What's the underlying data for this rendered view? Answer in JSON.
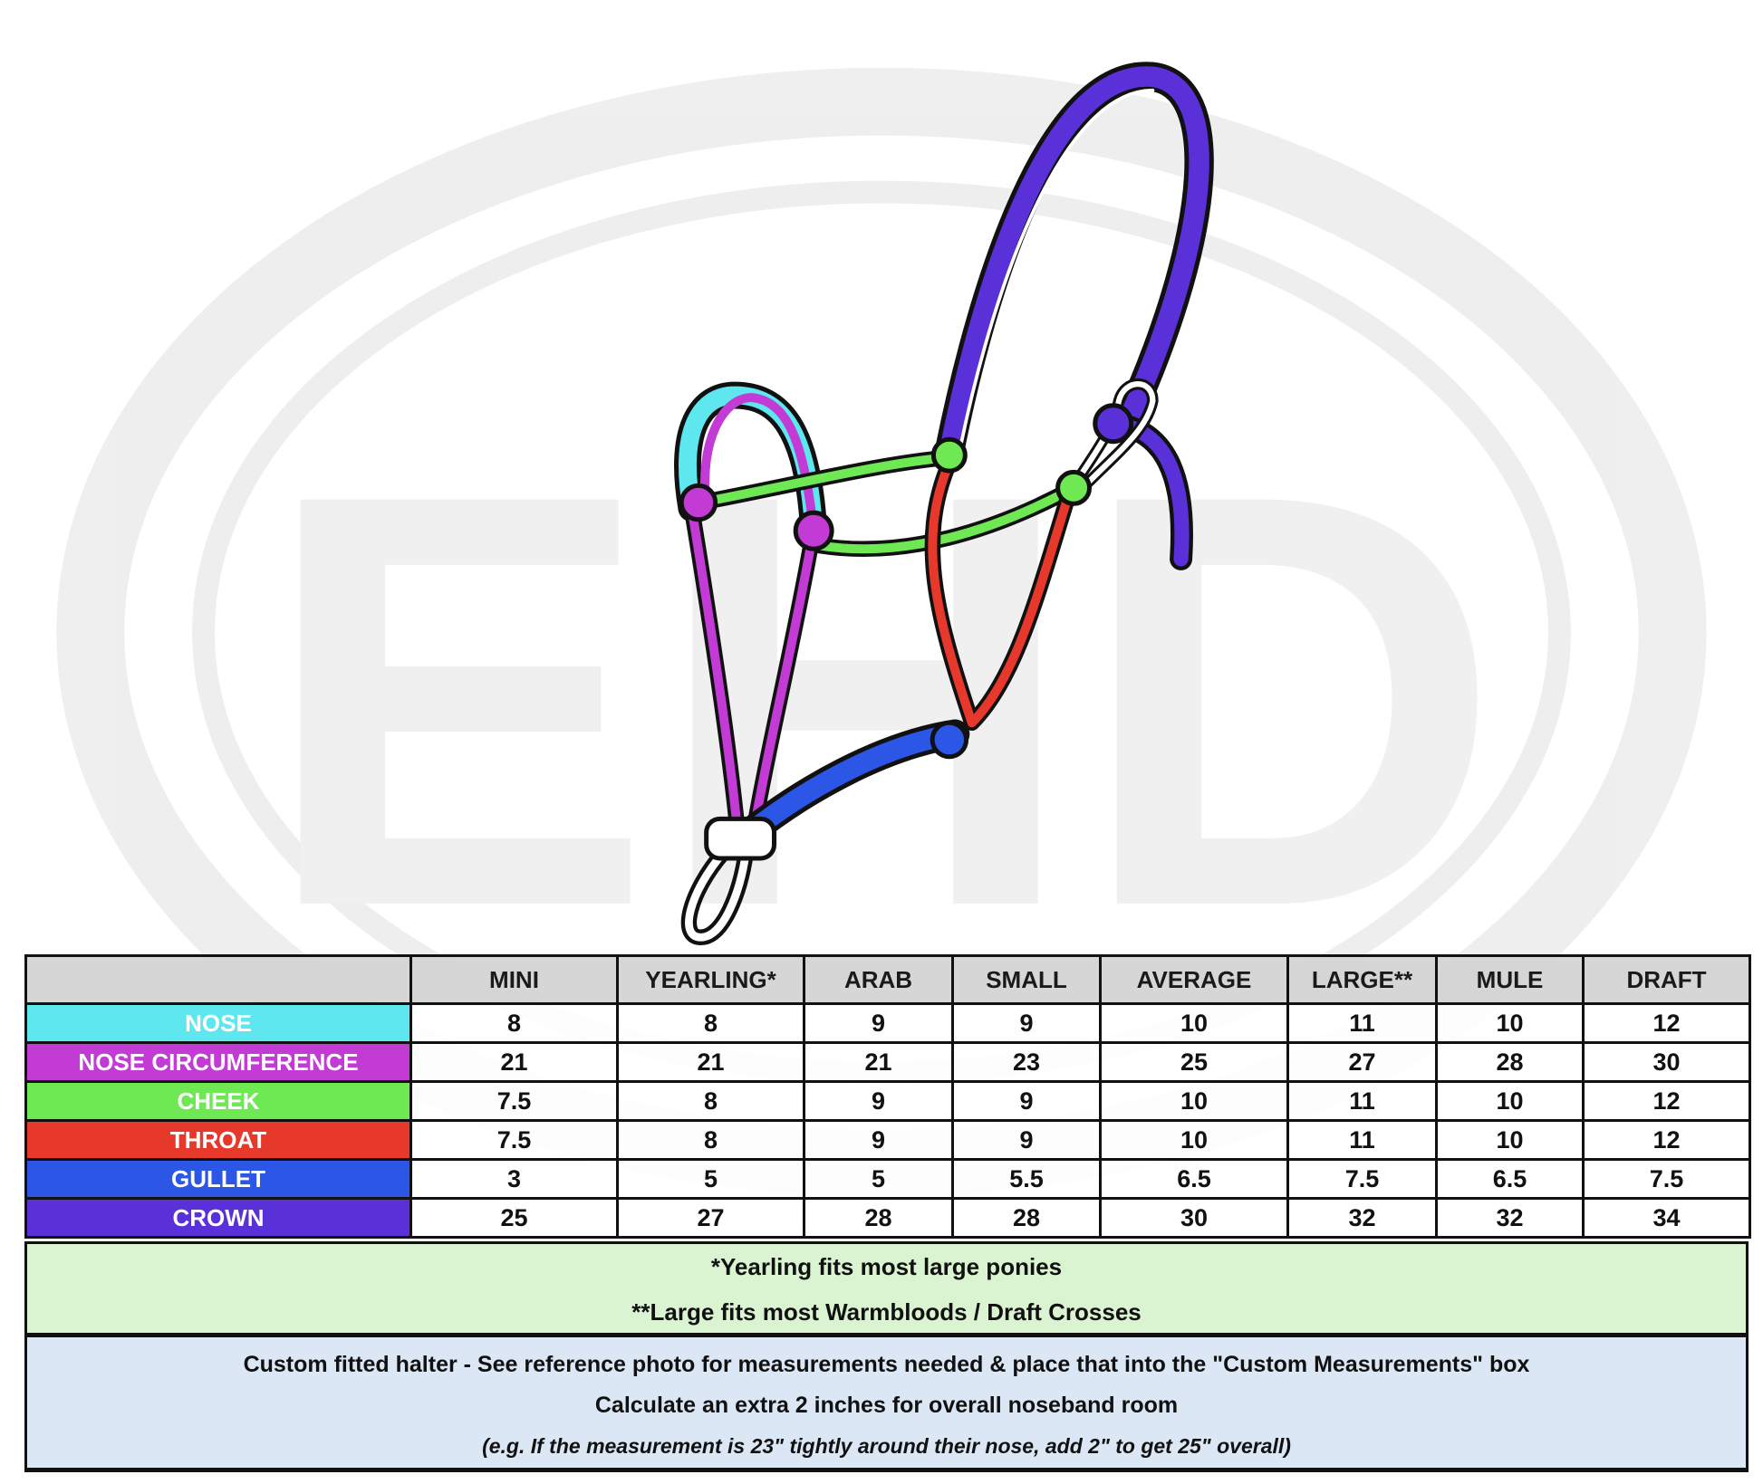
{
  "watermark": {
    "text": "EHD"
  },
  "colors": {
    "nose": "#5ee7ef",
    "nose_circumference": "#c23bd4",
    "cheek": "#6ee853",
    "throat": "#e6392b",
    "gullet": "#2c56e6",
    "crown": "#5a30d8",
    "header": "#d4d4d4",
    "footnote_bg": "#d7f2cd",
    "custom_bg": "#dae6f4"
  },
  "table": {
    "columns": [
      "MINI",
      "YEARLING*",
      "ARAB",
      "SMALL",
      "AVERAGE",
      "LARGE**",
      "MULE",
      "DRAFT"
    ],
    "rows": [
      {
        "label": "NOSE",
        "color": "#5ee7ef",
        "values": [
          "8",
          "8",
          "9",
          "9",
          "10",
          "11",
          "10",
          "12"
        ]
      },
      {
        "label": "NOSE CIRCUMFERENCE",
        "color": "#c23bd4",
        "values": [
          "21",
          "21",
          "21",
          "23",
          "25",
          "27",
          "28",
          "30"
        ]
      },
      {
        "label": "CHEEK",
        "color": "#6ee853",
        "values": [
          "7.5",
          "8",
          "9",
          "9",
          "10",
          "11",
          "10",
          "12"
        ]
      },
      {
        "label": "THROAT",
        "color": "#e6392b",
        "values": [
          "7.5",
          "8",
          "9",
          "9",
          "10",
          "11",
          "10",
          "12"
        ]
      },
      {
        "label": "GULLET",
        "color": "#2c56e6",
        "values": [
          "3",
          "5",
          "5",
          "5.5",
          "6.5",
          "7.5",
          "6.5",
          "7.5"
        ]
      },
      {
        "label": "CROWN",
        "color": "#5a30d8",
        "values": [
          "25",
          "27",
          "28",
          "28",
          "30",
          "32",
          "32",
          "34"
        ]
      }
    ]
  },
  "footnotes": [
    "*Yearling fits most large ponies",
    "**Large fits most Warmbloods / Draft Crosses"
  ],
  "custom": {
    "line1": "Custom fitted halter - See reference photo for measurements needed & place that into the \"Custom Measurements\" box",
    "line2": "Calculate an extra 2 inches for overall noseband room",
    "line3": "(e.g. If the measurement is 23\" tightly around their nose, add 2\" to get 25\" overall)"
  }
}
